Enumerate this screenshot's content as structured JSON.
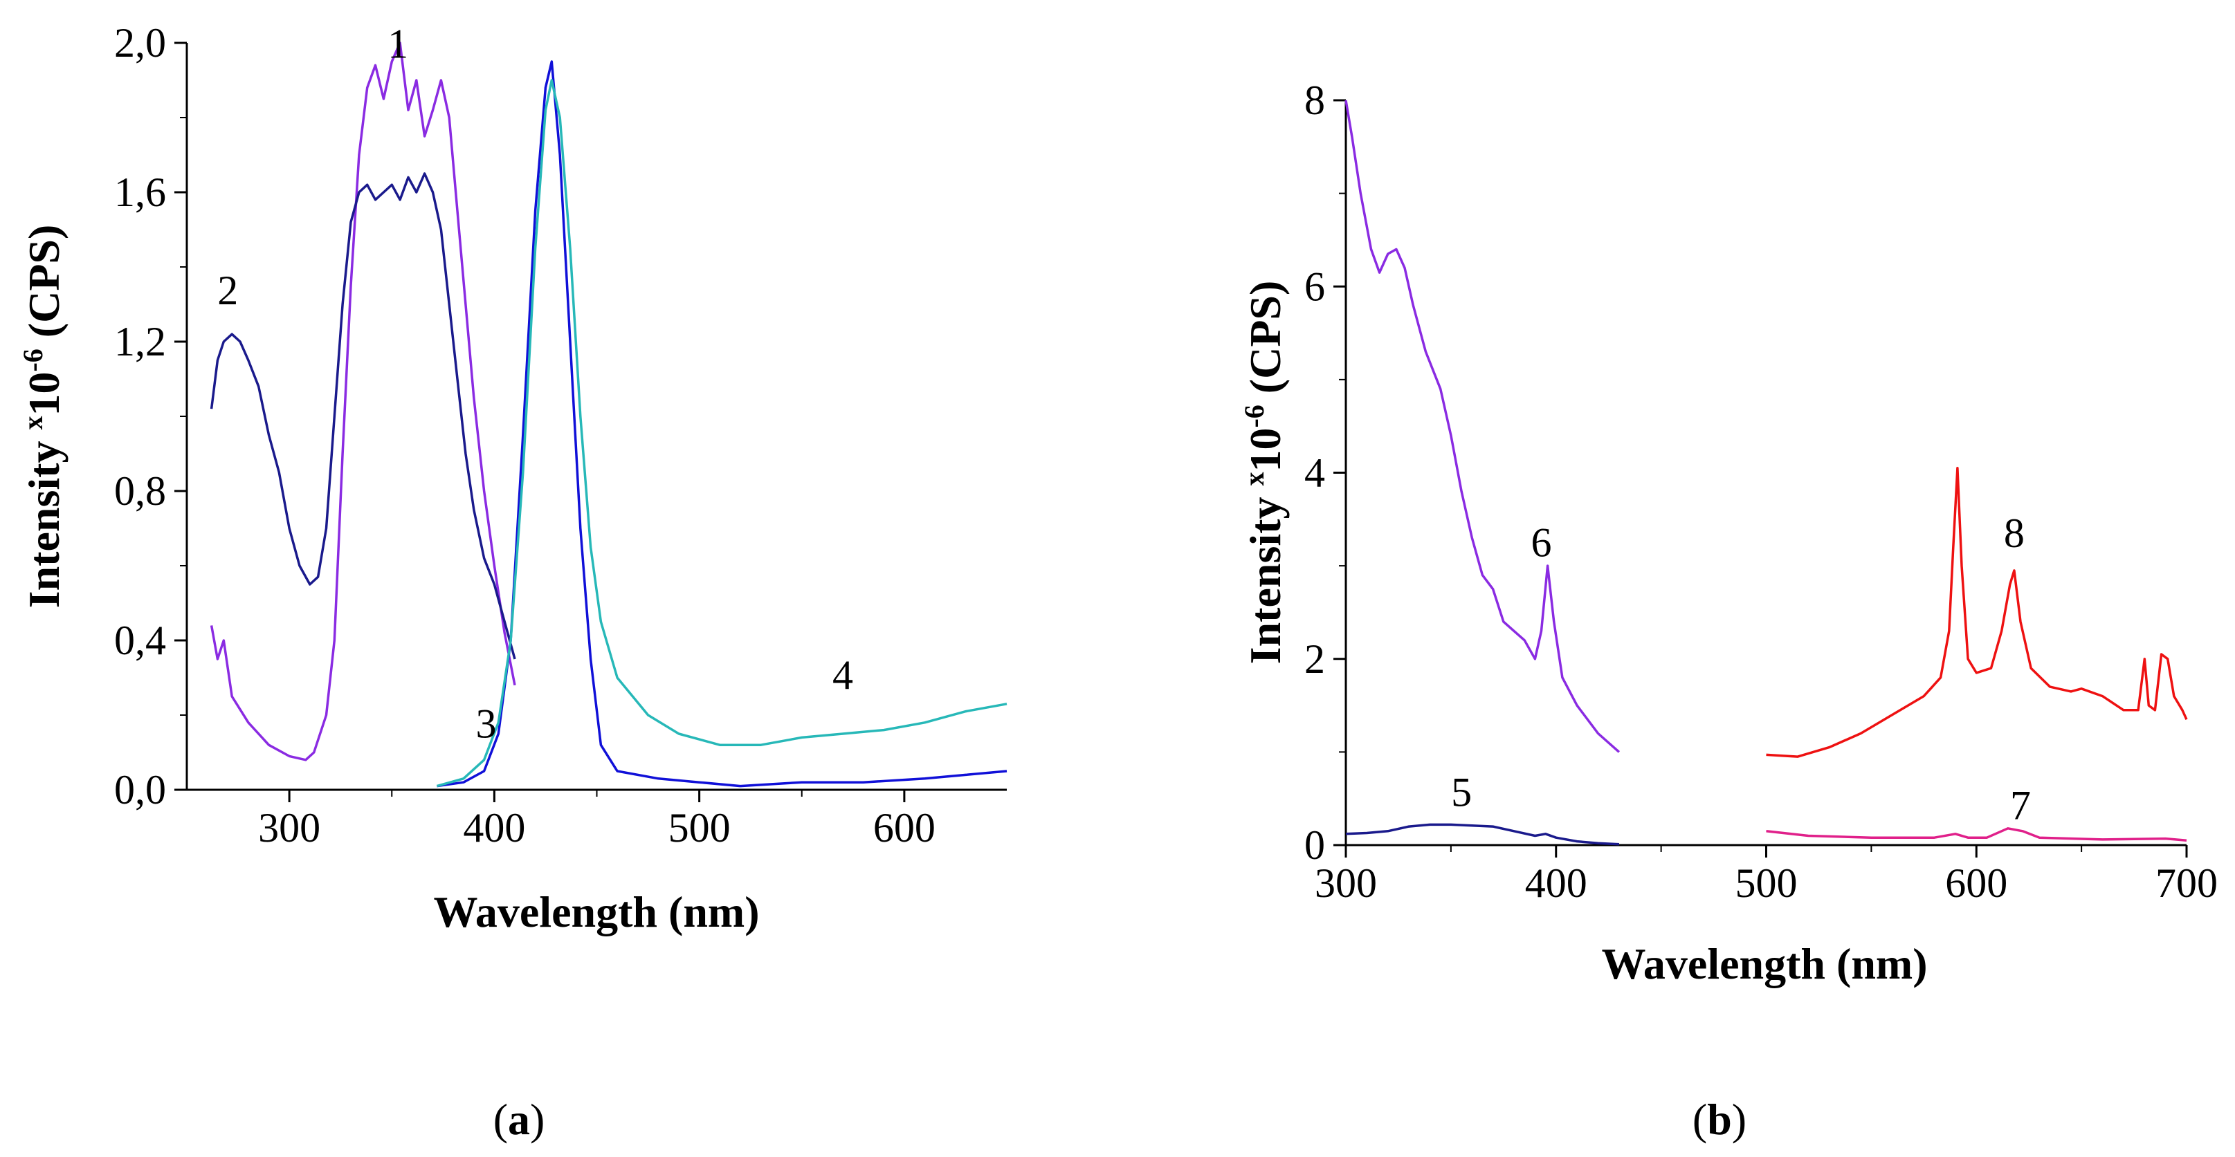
{
  "figure": {
    "caption_a": {
      "open": "(",
      "letter": "a",
      "close": ")"
    },
    "caption_b": {
      "open": "(",
      "letter": "b",
      "close": ")"
    }
  },
  "chart_data": [
    {
      "type": "line",
      "panel": "a",
      "xlabel": "Wavelength (nm)",
      "ylabel": {
        "prefix": "Intensity ",
        "sup1": "x",
        "mid": "10",
        "sup2": "-6",
        "suffix": " (CPS)"
      },
      "xlim": [
        250,
        650
      ],
      "ylim": [
        0,
        2.0
      ],
      "xticks": [
        300,
        400,
        500,
        600
      ],
      "xtick_labels": [
        "300",
        "400",
        "500",
        "600"
      ],
      "yticks": [
        0,
        0.4,
        0.8,
        1.2,
        1.6,
        2.0
      ],
      "ytick_labels": [
        "0,0",
        "0,4",
        "0,8",
        "1,2",
        "1,6",
        "2,0"
      ],
      "series": [
        {
          "name": "1",
          "color": "#8a2be2",
          "label_at": [
            353,
            1.96
          ],
          "points": [
            [
              262,
              0.44
            ],
            [
              265,
              0.35
            ],
            [
              268,
              0.4
            ],
            [
              272,
              0.25
            ],
            [
              280,
              0.18
            ],
            [
              290,
              0.12
            ],
            [
              300,
              0.09
            ],
            [
              308,
              0.08
            ],
            [
              312,
              0.1
            ],
            [
              318,
              0.2
            ],
            [
              322,
              0.4
            ],
            [
              326,
              0.9
            ],
            [
              330,
              1.35
            ],
            [
              334,
              1.7
            ],
            [
              338,
              1.88
            ],
            [
              342,
              1.94
            ],
            [
              346,
              1.85
            ],
            [
              350,
              1.95
            ],
            [
              354,
              2.0
            ],
            [
              358,
              1.82
            ],
            [
              362,
              1.9
            ],
            [
              366,
              1.75
            ],
            [
              370,
              1.82
            ],
            [
              374,
              1.9
            ],
            [
              378,
              1.8
            ],
            [
              382,
              1.55
            ],
            [
              386,
              1.3
            ],
            [
              390,
              1.05
            ],
            [
              395,
              0.8
            ],
            [
              400,
              0.6
            ],
            [
              405,
              0.42
            ],
            [
              410,
              0.28
            ]
          ]
        },
        {
          "name": "2",
          "color": "#1a1a8c",
          "label_at": [
            270,
            1.3
          ],
          "points": [
            [
              262,
              1.02
            ],
            [
              265,
              1.15
            ],
            [
              268,
              1.2
            ],
            [
              272,
              1.22
            ],
            [
              276,
              1.2
            ],
            [
              280,
              1.15
            ],
            [
              285,
              1.08
            ],
            [
              290,
              0.95
            ],
            [
              295,
              0.85
            ],
            [
              300,
              0.7
            ],
            [
              305,
              0.6
            ],
            [
              310,
              0.55
            ],
            [
              314,
              0.57
            ],
            [
              318,
              0.7
            ],
            [
              322,
              1.0
            ],
            [
              326,
              1.3
            ],
            [
              330,
              1.52
            ],
            [
              334,
              1.6
            ],
            [
              338,
              1.62
            ],
            [
              342,
              1.58
            ],
            [
              346,
              1.6
            ],
            [
              350,
              1.62
            ],
            [
              354,
              1.58
            ],
            [
              358,
              1.64
            ],
            [
              362,
              1.6
            ],
            [
              366,
              1.65
            ],
            [
              370,
              1.6
            ],
            [
              374,
              1.5
            ],
            [
              378,
              1.3
            ],
            [
              382,
              1.1
            ],
            [
              386,
              0.9
            ],
            [
              390,
              0.75
            ],
            [
              395,
              0.62
            ],
            [
              400,
              0.55
            ],
            [
              405,
              0.45
            ],
            [
              410,
              0.35
            ]
          ]
        },
        {
          "name": "3",
          "color": "#1010d8",
          "label_at": [
            396,
            0.14
          ],
          "points": [
            [
              372,
              0.01
            ],
            [
              385,
              0.02
            ],
            [
              395,
              0.05
            ],
            [
              402,
              0.15
            ],
            [
              408,
              0.4
            ],
            [
              414,
              0.95
            ],
            [
              420,
              1.55
            ],
            [
              425,
              1.88
            ],
            [
              428,
              1.95
            ],
            [
              432,
              1.7
            ],
            [
              437,
              1.2
            ],
            [
              442,
              0.7
            ],
            [
              447,
              0.35
            ],
            [
              452,
              0.12
            ],
            [
              460,
              0.05
            ],
            [
              480,
              0.03
            ],
            [
              500,
              0.02
            ],
            [
              520,
              0.01
            ],
            [
              550,
              0.02
            ],
            [
              580,
              0.02
            ],
            [
              610,
              0.03
            ],
            [
              630,
              0.04
            ],
            [
              650,
              0.05
            ]
          ]
        },
        {
          "name": "4",
          "color": "#27b8b8",
          "label_at": [
            570,
            0.27
          ],
          "points": [
            [
              372,
              0.01
            ],
            [
              385,
              0.03
            ],
            [
              395,
              0.08
            ],
            [
              402,
              0.18
            ],
            [
              408,
              0.4
            ],
            [
              414,
              0.85
            ],
            [
              420,
              1.45
            ],
            [
              425,
              1.82
            ],
            [
              428,
              1.9
            ],
            [
              432,
              1.8
            ],
            [
              437,
              1.45
            ],
            [
              442,
              1.0
            ],
            [
              447,
              0.65
            ],
            [
              452,
              0.45
            ],
            [
              460,
              0.3
            ],
            [
              475,
              0.2
            ],
            [
              490,
              0.15
            ],
            [
              510,
              0.12
            ],
            [
              530,
              0.12
            ],
            [
              550,
              0.14
            ],
            [
              570,
              0.15
            ],
            [
              590,
              0.16
            ],
            [
              610,
              0.18
            ],
            [
              630,
              0.21
            ],
            [
              650,
              0.23
            ]
          ]
        }
      ]
    },
    {
      "type": "line",
      "panel": "b",
      "xlabel": "Wavelength (nm)",
      "ylabel": {
        "prefix": "Intensity ",
        "sup1": "x",
        "mid": "10",
        "sup2": "-6",
        "suffix": " (CPS)"
      },
      "xlim": [
        300,
        700
      ],
      "ylim": [
        0,
        8
      ],
      "xticks": [
        300,
        400,
        500,
        600,
        700
      ],
      "xtick_labels": [
        "300",
        "400",
        "500",
        "600",
        "700"
      ],
      "yticks": [
        0,
        2,
        4,
        6,
        8
      ],
      "ytick_labels": [
        "0",
        "2",
        "4",
        "6",
        "8"
      ],
      "series": [
        {
          "name": "5",
          "color": "#1a1a8c",
          "label_at": [
            355,
            0.42
          ],
          "points": [
            [
              300,
              0.12
            ],
            [
              310,
              0.13
            ],
            [
              320,
              0.15
            ],
            [
              330,
              0.2
            ],
            [
              340,
              0.22
            ],
            [
              350,
              0.22
            ],
            [
              360,
              0.21
            ],
            [
              370,
              0.2
            ],
            [
              380,
              0.15
            ],
            [
              390,
              0.1
            ],
            [
              395,
              0.12
            ],
            [
              400,
              0.08
            ],
            [
              410,
              0.04
            ],
            [
              420,
              0.02
            ],
            [
              430,
              0.01
            ]
          ]
        },
        {
          "name": "6",
          "color": "#8a2be2",
          "label_at": [
            393,
            3.1
          ],
          "points": [
            [
              300,
              8.0
            ],
            [
              303,
              7.6
            ],
            [
              307,
              7.0
            ],
            [
              312,
              6.4
            ],
            [
              316,
              6.15
            ],
            [
              320,
              6.35
            ],
            [
              324,
              6.4
            ],
            [
              328,
              6.2
            ],
            [
              332,
              5.8
            ],
            [
              338,
              5.3
            ],
            [
              345,
              4.9
            ],
            [
              350,
              4.4
            ],
            [
              355,
              3.8
            ],
            [
              360,
              3.3
            ],
            [
              365,
              2.9
            ],
            [
              370,
              2.75
            ],
            [
              375,
              2.4
            ],
            [
              380,
              2.3
            ],
            [
              385,
              2.2
            ],
            [
              390,
              2.0
            ],
            [
              393,
              2.3
            ],
            [
              396,
              3.0
            ],
            [
              399,
              2.4
            ],
            [
              403,
              1.8
            ],
            [
              410,
              1.5
            ],
            [
              420,
              1.2
            ],
            [
              430,
              1.0
            ]
          ]
        },
        {
          "name": "7",
          "color": "#e0208a",
          "label_at": [
            621,
            0.28
          ],
          "points": [
            [
              500,
              0.15
            ],
            [
              520,
              0.1
            ],
            [
              550,
              0.08
            ],
            [
              580,
              0.08
            ],
            [
              590,
              0.12
            ],
            [
              596,
              0.08
            ],
            [
              605,
              0.08
            ],
            [
              615,
              0.18
            ],
            [
              622,
              0.15
            ],
            [
              630,
              0.08
            ],
            [
              660,
              0.06
            ],
            [
              690,
              0.07
            ],
            [
              700,
              0.05
            ]
          ]
        },
        {
          "name": "8",
          "color": "#ee1111",
          "label_at": [
            618,
            3.2
          ],
          "points": [
            [
              500,
              0.97
            ],
            [
              515,
              0.95
            ],
            [
              530,
              1.05
            ],
            [
              545,
              1.2
            ],
            [
              560,
              1.4
            ],
            [
              575,
              1.6
            ],
            [
              583,
              1.8
            ],
            [
              587,
              2.3
            ],
            [
              589,
              3.2
            ],
            [
              591,
              4.05
            ],
            [
              593,
              3.0
            ],
            [
              596,
              2.0
            ],
            [
              600,
              1.85
            ],
            [
              607,
              1.9
            ],
            [
              612,
              2.3
            ],
            [
              616,
              2.8
            ],
            [
              618,
              2.95
            ],
            [
              621,
              2.4
            ],
            [
              626,
              1.9
            ],
            [
              635,
              1.7
            ],
            [
              645,
              1.65
            ],
            [
              650,
              1.68
            ],
            [
              660,
              1.6
            ],
            [
              670,
              1.45
            ],
            [
              677,
              1.45
            ],
            [
              680,
              2.0
            ],
            [
              682,
              1.5
            ],
            [
              685,
              1.45
            ],
            [
              688,
              2.05
            ],
            [
              691,
              2.0
            ],
            [
              694,
              1.6
            ],
            [
              698,
              1.45
            ],
            [
              700,
              1.35
            ]
          ]
        }
      ]
    }
  ]
}
